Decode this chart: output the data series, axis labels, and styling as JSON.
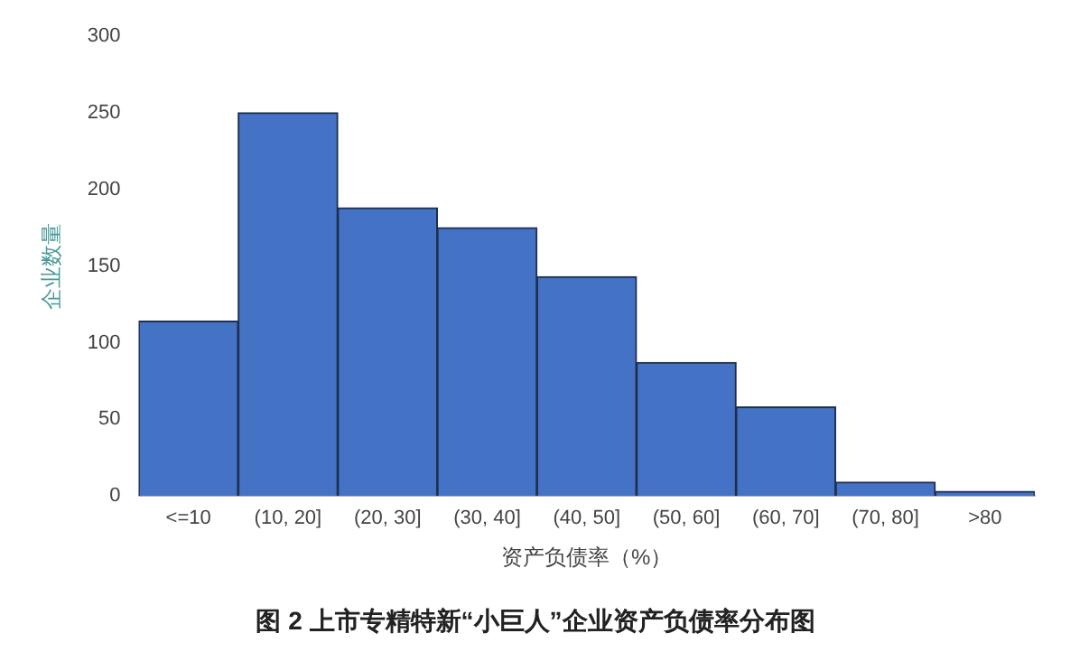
{
  "chart_data": {
    "type": "bar",
    "title": "图 2 上市专精特新“小巨人”企业资产负债率分布图",
    "xlabel": "资产负债率（%）",
    "ylabel": "企业数量",
    "categories": [
      "<=10",
      "(10, 20]",
      "(20, 30]",
      "(30, 40]",
      "(40, 50]",
      "(50, 60]",
      "(60, 70]",
      "(70, 80]",
      ">80"
    ],
    "values": [
      114,
      250,
      188,
      175,
      143,
      87,
      58,
      9,
      3
    ],
    "color": "#4472c4",
    "ylim": [
      0,
      300
    ],
    "yticks": [
      0,
      50,
      100,
      150,
      200,
      250,
      300
    ],
    "grid": false,
    "legend": false
  }
}
